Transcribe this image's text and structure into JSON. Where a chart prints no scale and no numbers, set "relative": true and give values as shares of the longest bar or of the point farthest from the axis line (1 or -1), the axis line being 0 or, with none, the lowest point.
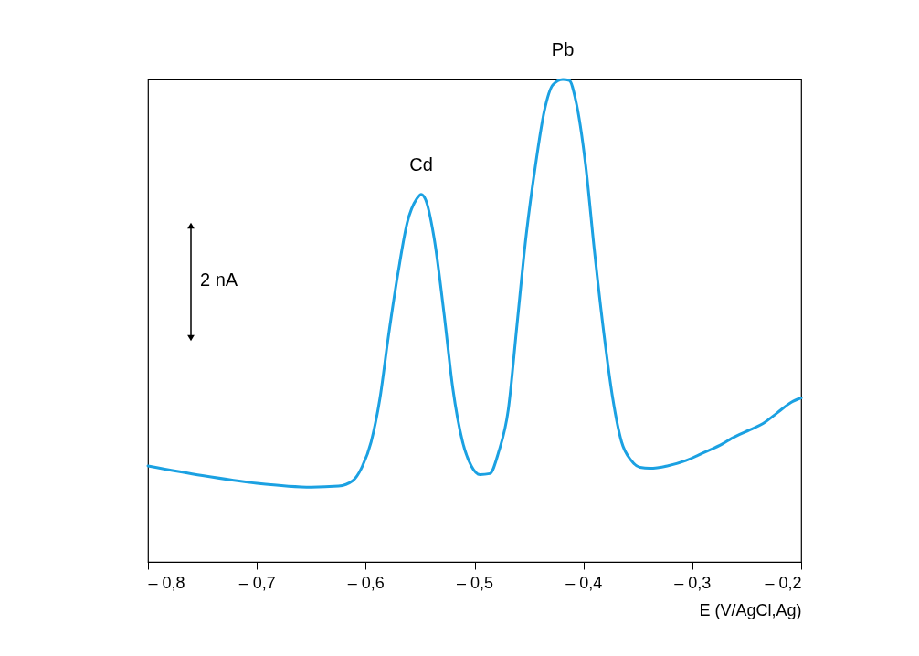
{
  "chart_data": {
    "type": "line",
    "relative": true,
    "xlabel": "E (V/AgCl,Ag)",
    "xlim": [
      -0.8,
      -0.2
    ],
    "xticks": [
      {
        "value": -0.8,
        "label": "– 0,8"
      },
      {
        "value": -0.7,
        "label": "– 0,7"
      },
      {
        "value": -0.6,
        "label": "– 0,6"
      },
      {
        "value": -0.5,
        "label": "– 0,5"
      },
      {
        "value": -0.4,
        "label": "– 0,4"
      },
      {
        "value": -0.3,
        "label": "– 0,3"
      },
      {
        "value": -0.2,
        "label": "– 0,2"
      }
    ],
    "x": [
      -0.8,
      -0.75,
      -0.7,
      -0.65,
      -0.625,
      -0.612,
      -0.604,
      -0.595,
      -0.587,
      -0.579,
      -0.57,
      -0.562,
      -0.553,
      -0.549,
      -0.545,
      -0.537,
      -0.528,
      -0.52,
      -0.511,
      -0.503,
      -0.495,
      -0.486,
      -0.478,
      -0.469,
      -0.461,
      -0.453,
      -0.444,
      -0.436,
      -0.428,
      -0.419,
      -0.413,
      -0.407,
      -0.398,
      -0.39,
      -0.381,
      -0.373,
      -0.365,
      -0.356,
      -0.348,
      -0.339,
      -0.323,
      -0.306,
      -0.289,
      -0.272,
      -0.264,
      -0.247,
      -0.235,
      -0.222,
      -0.209,
      -0.2
    ],
    "series": [
      {
        "color": "#1ba1e2",
        "values": [
          0.199,
          0.179,
          0.163,
          0.155,
          0.157,
          0.168,
          0.194,
          0.249,
          0.338,
          0.47,
          0.603,
          0.702,
          0.753,
          0.762,
          0.751,
          0.669,
          0.514,
          0.36,
          0.249,
          0.199,
          0.181,
          0.183,
          0.227,
          0.316,
          0.492,
          0.669,
          0.823,
          0.934,
          0.989,
          1,
          0.998,
          0.956,
          0.823,
          0.647,
          0.47,
          0.338,
          0.249,
          0.21,
          0.196,
          0.194,
          0.199,
          0.21,
          0.227,
          0.245,
          0.256,
          0.274,
          0.287,
          0.309,
          0.331,
          0.34
        ]
      }
    ],
    "annotations": [
      {
        "text": "Cd",
        "x": -0.549,
        "y": 0.762
      },
      {
        "text": "Pb",
        "x": -0.419,
        "y": 1
      },
      "2 nA"
    ],
    "grid": false,
    "marker": "none",
    "line_style": "solid"
  }
}
